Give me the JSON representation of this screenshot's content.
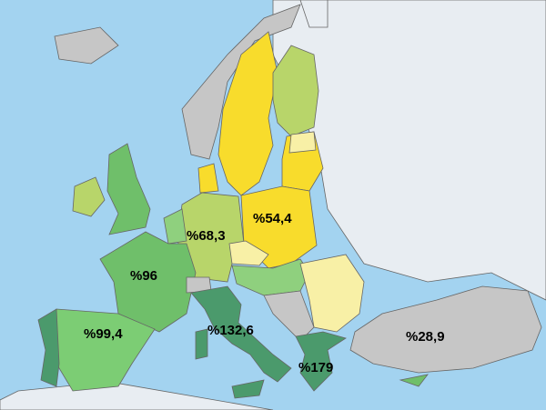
{
  "labels": [
    {
      "text": "%54,4"
    },
    {
      "text": "%68,3"
    },
    {
      "text": "%96"
    },
    {
      "text": "%99,4"
    },
    {
      "text": "%132,6"
    },
    {
      "text": "%179"
    },
    {
      "text": "%28,9"
    }
  ]
}
